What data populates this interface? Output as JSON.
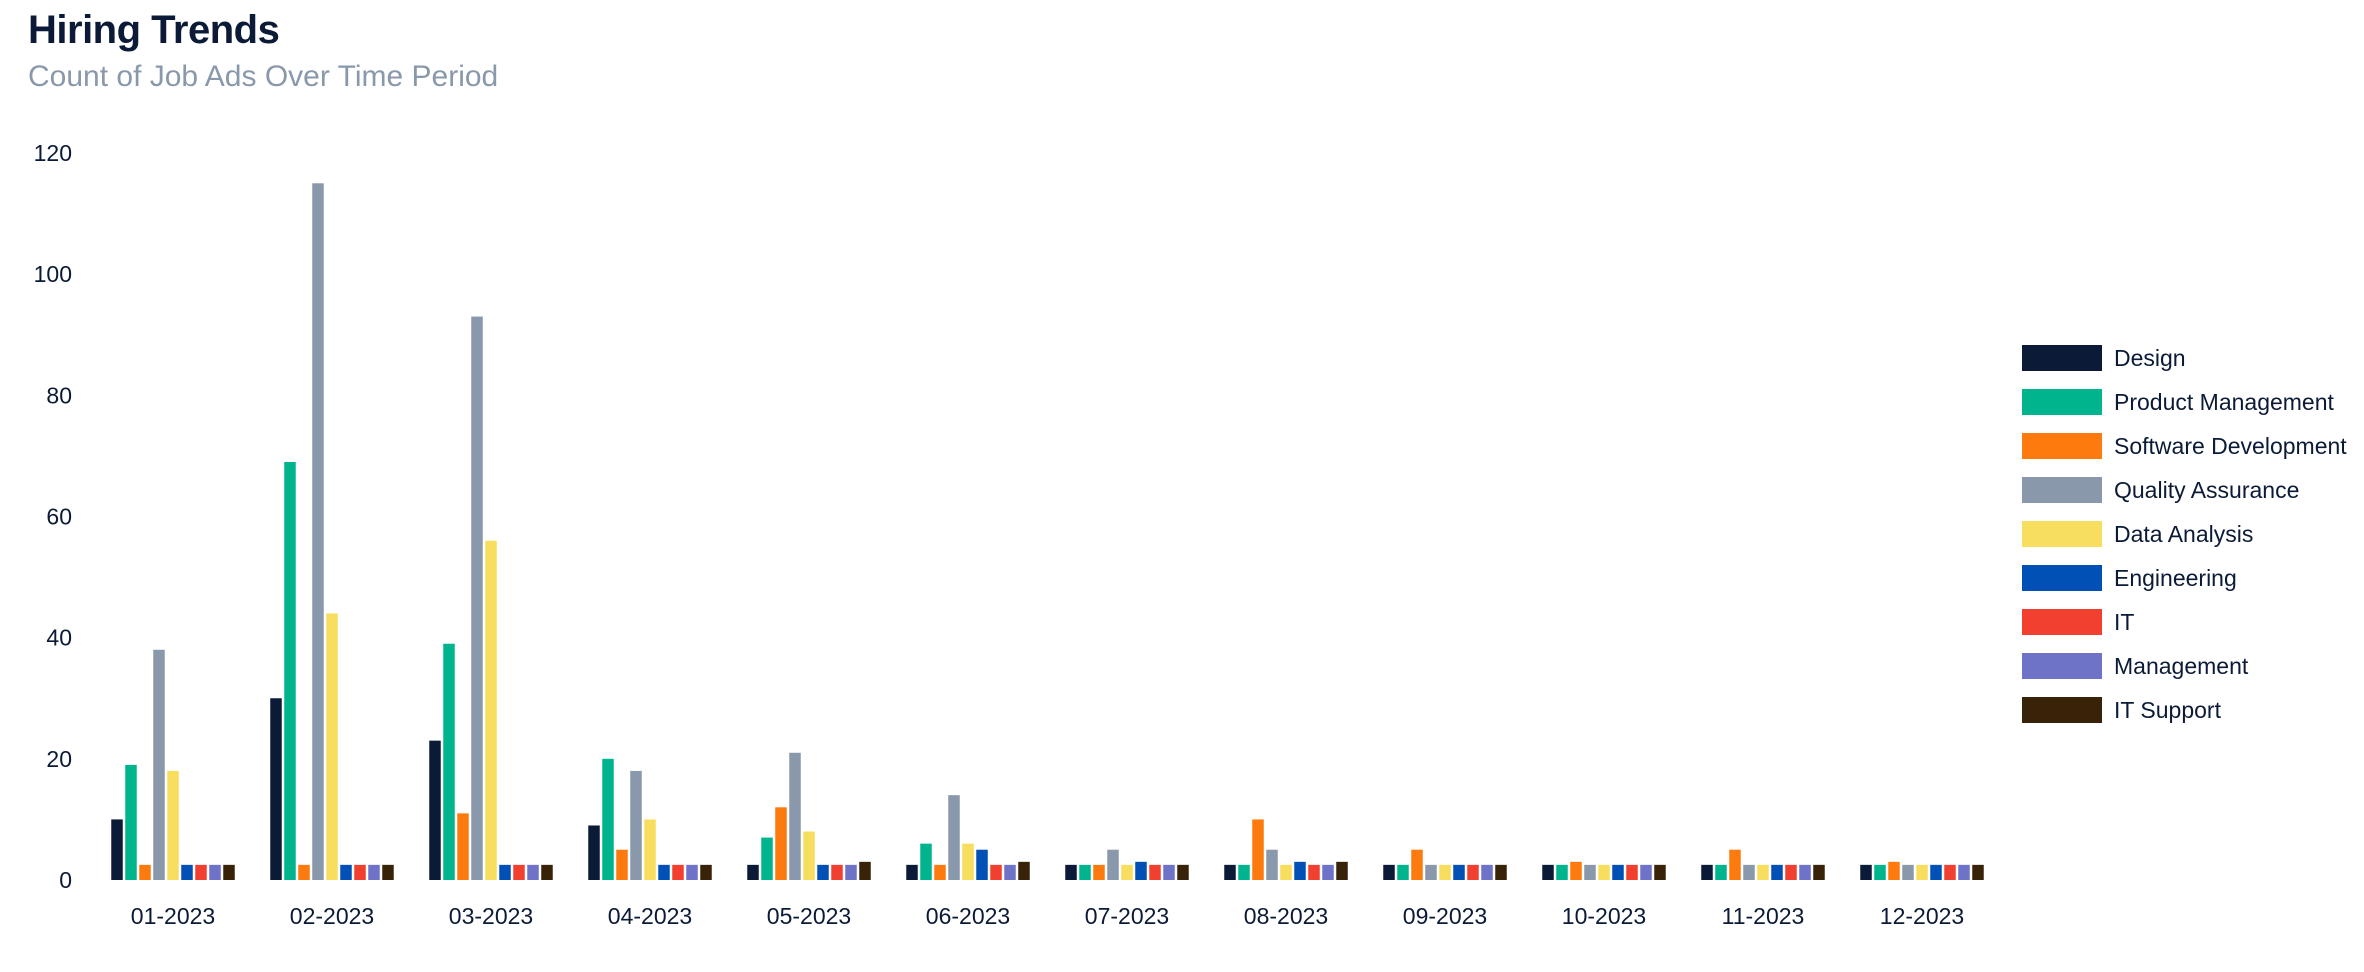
{
  "chart_data": {
    "type": "bar",
    "title": "Hiring Trends",
    "subtitle": "Count of Job Ads Over Time Period",
    "xlabel": "",
    "ylabel": "",
    "ylim": [
      0,
      120
    ],
    "yticks": [
      0,
      20,
      40,
      60,
      80,
      100,
      120
    ],
    "grid": false,
    "legend_position": "right",
    "categories": [
      "01-2023",
      "02-2023",
      "03-2023",
      "04-2023",
      "05-2023",
      "06-2023",
      "07-2023",
      "08-2023",
      "09-2023",
      "10-2023",
      "11-2023",
      "12-2023"
    ],
    "series": [
      {
        "name": "Design",
        "color": "#0b1a36",
        "values": [
          10,
          30,
          23,
          9,
          2.5,
          2.5,
          2.5,
          2.5,
          2.5,
          2.5,
          2.5,
          2.5
        ]
      },
      {
        "name": "Product Management",
        "color": "#00b48d",
        "values": [
          19,
          69,
          39,
          20,
          7,
          6,
          2.5,
          2.5,
          2.5,
          2.5,
          2.5,
          2.5
        ]
      },
      {
        "name": "Software Development",
        "color": "#fd7a0f",
        "values": [
          2.5,
          2.5,
          11,
          5,
          12,
          2.5,
          2.5,
          10,
          5,
          3,
          5,
          3
        ]
      },
      {
        "name": "Quality Assurance",
        "color": "#8a98ab",
        "values": [
          38,
          115,
          93,
          18,
          21,
          14,
          5,
          5,
          2.5,
          2.5,
          2.5,
          2.5
        ]
      },
      {
        "name": "Data Analysis",
        "color": "#f8de5f",
        "values": [
          18,
          44,
          56,
          10,
          8,
          6,
          2.5,
          2.5,
          2.5,
          2.5,
          2.5,
          2.5
        ]
      },
      {
        "name": "Engineering",
        "color": "#0050b5",
        "values": [
          2.5,
          2.5,
          2.5,
          2.5,
          2.5,
          5,
          3,
          3,
          2.5,
          2.5,
          2.5,
          2.5
        ]
      },
      {
        "name": "IT",
        "color": "#f1402f",
        "values": [
          2.5,
          2.5,
          2.5,
          2.5,
          2.5,
          2.5,
          2.5,
          2.5,
          2.5,
          2.5,
          2.5,
          2.5
        ]
      },
      {
        "name": "Management",
        "color": "#6e73c8",
        "values": [
          2.5,
          2.5,
          2.5,
          2.5,
          2.5,
          2.5,
          2.5,
          2.5,
          2.5,
          2.5,
          2.5,
          2.5
        ]
      },
      {
        "name": "IT Support",
        "color": "#382208",
        "values": [
          2.5,
          2.5,
          2.5,
          2.5,
          3,
          3,
          2.5,
          3,
          2.5,
          2.5,
          2.5,
          2.5
        ]
      }
    ]
  }
}
